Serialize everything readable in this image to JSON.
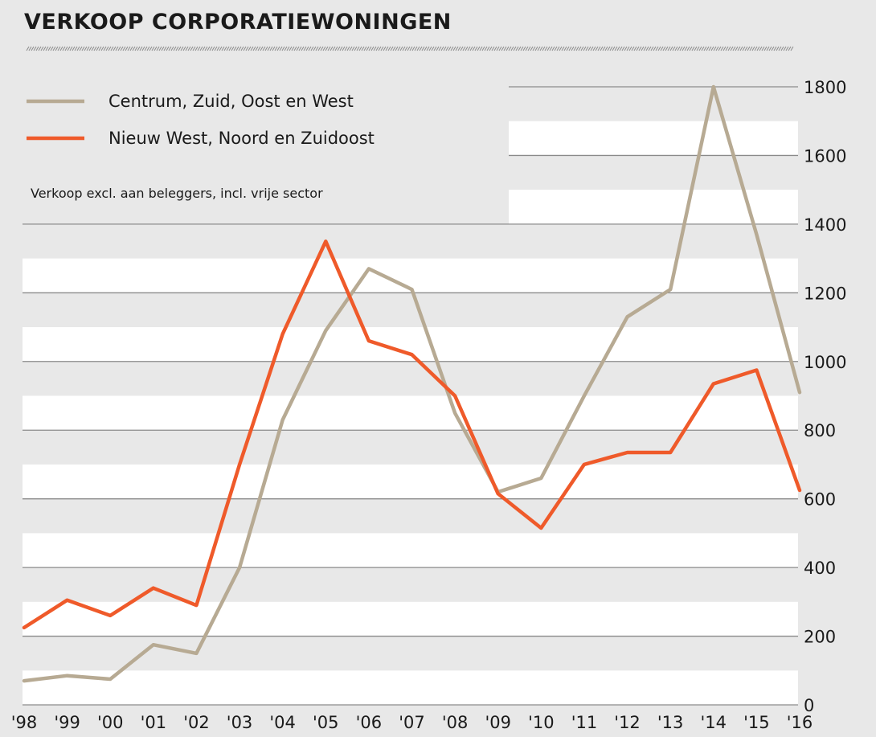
{
  "chart_data": {
    "type": "line",
    "title": "VERKOOP CORPORATIEWONINGEN",
    "note": "Verkoop excl. aan beleggers, incl. vrije sector",
    "x": [
      "'98",
      "'99",
      "'00",
      "'01",
      "'02",
      "'03",
      "'04",
      "'05",
      "'06",
      "'07",
      "'08",
      "'09",
      "'10",
      "'11",
      "'12",
      "'13",
      "'14",
      "'15",
      "'16"
    ],
    "series": [
      {
        "name": "Centrum, Zuid, Oost en West",
        "color": "#b7aa93",
        "values": [
          70,
          85,
          75,
          175,
          150,
          400,
          830,
          1090,
          1270,
          1210,
          850,
          620,
          660,
          900,
          1130,
          1210,
          1800,
          1370,
          910
        ]
      },
      {
        "name": "Nieuw West, Noord en Zuidoost",
        "color": "#ef5a2a",
        "values": [
          225,
          305,
          260,
          340,
          290,
          700,
          1080,
          1350,
          1060,
          1020,
          900,
          615,
          515,
          700,
          735,
          735,
          935,
          975,
          625
        ]
      }
    ],
    "yticks": [
      0,
      200,
      400,
      600,
      800,
      1000,
      1200,
      1400,
      1600,
      1800
    ],
    "ylim": [
      0,
      1800
    ],
    "y_axis_position": "right",
    "legend_position": "top-left",
    "grid": true
  }
}
